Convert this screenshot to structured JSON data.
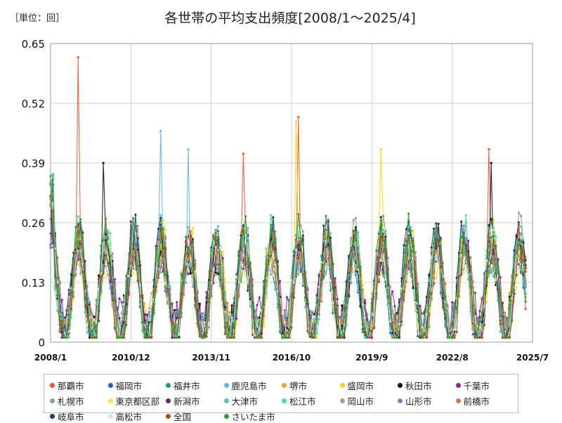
{
  "chart_data": {
    "type": "line",
    "title": "各世帯の平均支出頻度[2008/1～2025/4]",
    "unit_label": "［単位：回］",
    "xlabel": "",
    "ylabel": "",
    "x_ticks": [
      "2008/1",
      "2010/12",
      "2013/11",
      "2016/10",
      "2019/9",
      "2022/8",
      "2025/7"
    ],
    "x_range": [
      "2008/1",
      "2025/7"
    ],
    "y_ticks": [
      "0",
      "0.13",
      "0.26",
      "0.39",
      "0.52",
      "0.65"
    ],
    "ylim": [
      0,
      0.65
    ],
    "grid": true,
    "legend_position": "bottom",
    "series": [
      {
        "name": "那覇市",
        "color": "#e8562a"
      },
      {
        "name": "福岡市",
        "color": "#1f5fd8"
      },
      {
        "name": "福井市",
        "color": "#1a9b73"
      },
      {
        "name": "鹿児島市",
        "color": "#5ab7e8"
      },
      {
        "name": "堺市",
        "color": "#f2a81d"
      },
      {
        "name": "盛岡市",
        "color": "#f5d90a"
      },
      {
        "name": "秋田市",
        "color": "#111111"
      },
      {
        "name": "千葉市",
        "color": "#9b1f9b"
      },
      {
        "name": "札幌市",
        "color": "#8c9aa3"
      },
      {
        "name": "東京都区部",
        "color": "#f4e34a"
      },
      {
        "name": "新潟市",
        "color": "#6d1a7a"
      },
      {
        "name": "大津市",
        "color": "#52c7a0"
      },
      {
        "name": "松江市",
        "color": "#3fe0b4"
      },
      {
        "name": "岡山市",
        "color": "#b89a7a"
      },
      {
        "name": "山形市",
        "color": "#7c7fc4"
      },
      {
        "name": "前橋市",
        "color": "#c97a4a"
      },
      {
        "name": "岐阜市",
        "color": "#173a66"
      },
      {
        "name": "高松市",
        "color": "#cdeccd"
      },
      {
        "name": "全国",
        "color": "#a0501a"
      },
      {
        "name": "さいたま市",
        "color": "#2aa02a"
      }
    ],
    "peaks": [
      {
        "series": "那覇市",
        "x": "2009/1",
        "y": 0.62
      },
      {
        "series": "那覇市",
        "x": "2017/1",
        "y": 0.49
      },
      {
        "series": "盛岡市",
        "x": "2016/12",
        "y": 0.48
      },
      {
        "series": "鹿児島市",
        "x": "2012/1",
        "y": 0.46
      },
      {
        "series": "那覇市",
        "x": "2023/12",
        "y": 0.42
      },
      {
        "series": "盛岡市",
        "x": "2020/1",
        "y": 0.42
      },
      {
        "series": "那覇市",
        "x": "2015/1",
        "y": 0.41
      },
      {
        "series": "鹿児島市",
        "x": "2013/1",
        "y": 0.42
      },
      {
        "series": "秋田市",
        "x": "2009/12",
        "y": 0.39
      },
      {
        "series": "秋田市",
        "x": "2024/1",
        "y": 0.39
      }
    ]
  }
}
